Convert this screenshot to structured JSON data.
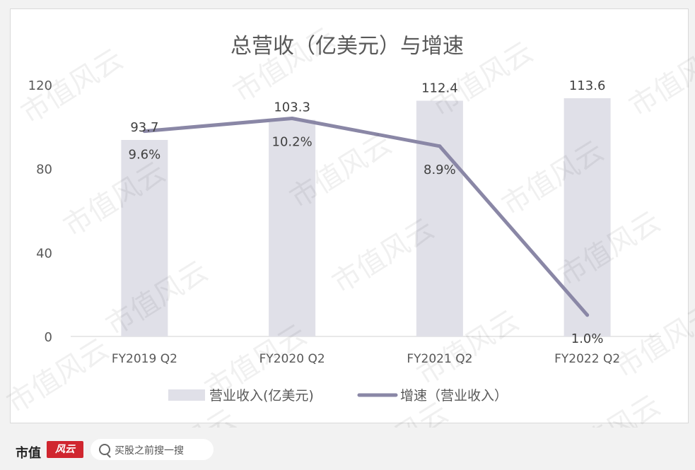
{
  "chart_data": {
    "type": "bar+line",
    "title": "总营收（亿美元）与增速",
    "categories": [
      "FY2019 Q2",
      "FY2020 Q2",
      "FY2021 Q2",
      "FY2022 Q2"
    ],
    "series": [
      {
        "name": "营业收入(亿美元)",
        "type": "bar",
        "values": [
          93.7,
          103.3,
          112.4,
          113.6
        ],
        "labels": [
          "93.7",
          "103.3",
          "112.4",
          "113.6"
        ],
        "color": "#e0e0e8"
      },
      {
        "name": "增速（营业收入）",
        "type": "line",
        "values": [
          9.6,
          10.2,
          8.9,
          1.0
        ],
        "labels": [
          "9.6%",
          "10.2%",
          "8.9%",
          "1.0%"
        ],
        "color": "#8a87a6"
      }
    ],
    "ylim": [
      0,
      120
    ],
    "yticks": [
      0,
      40,
      80,
      120
    ],
    "y2lim": [
      0,
      11.77
    ],
    "grid": false,
    "legend": "bottom"
  },
  "watermark": "市值风云",
  "footer": {
    "brand": "市值",
    "brand_badge": "风云",
    "search_placeholder": "买股之前搜一搜",
    "search_icon": "search-icon"
  }
}
